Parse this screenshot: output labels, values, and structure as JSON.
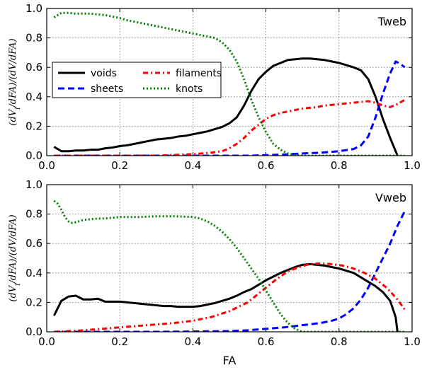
{
  "chart_data": [
    {
      "type": "line",
      "title": "Tweb",
      "xlabel": "",
      "ylabel": "(dV_i/dFA)/(dV/dFA)",
      "xlim": [
        0.0,
        1.0
      ],
      "ylim": [
        0.0,
        1.0
      ],
      "xticks": [
        "0.0",
        "0.2",
        "0.4",
        "0.6",
        "0.8",
        "1.0"
      ],
      "yticks": [
        "0.0",
        "0.2",
        "0.4",
        "0.6",
        "0.8",
        "1.0"
      ],
      "grid": true,
      "legend": "upper-left",
      "series": [
        {
          "name": "voids",
          "color": "#000000",
          "style": "solid",
          "x": [
            0.02,
            0.04,
            0.06,
            0.08,
            0.1,
            0.12,
            0.14,
            0.16,
            0.18,
            0.2,
            0.22,
            0.24,
            0.26,
            0.28,
            0.3,
            0.32,
            0.34,
            0.36,
            0.38,
            0.4,
            0.42,
            0.44,
            0.46,
            0.48,
            0.5,
            0.52,
            0.54,
            0.56,
            0.58,
            0.6,
            0.62,
            0.64,
            0.66,
            0.68,
            0.7,
            0.72,
            0.74,
            0.76,
            0.78,
            0.8,
            0.82,
            0.84,
            0.86,
            0.88,
            0.9,
            0.92,
            0.94,
            0.96
          ],
          "y": [
            0.06,
            0.03,
            0.03,
            0.035,
            0.035,
            0.04,
            0.04,
            0.05,
            0.055,
            0.065,
            0.07,
            0.08,
            0.09,
            0.1,
            0.11,
            0.115,
            0.12,
            0.13,
            0.135,
            0.145,
            0.155,
            0.165,
            0.18,
            0.195,
            0.22,
            0.26,
            0.34,
            0.44,
            0.52,
            0.57,
            0.61,
            0.63,
            0.65,
            0.655,
            0.66,
            0.66,
            0.655,
            0.65,
            0.64,
            0.63,
            0.615,
            0.6,
            0.58,
            0.52,
            0.4,
            0.25,
            0.12,
            0.0
          ]
        },
        {
          "name": "sheets",
          "color": "#0000ff",
          "style": "dashed",
          "x": [
            0.02,
            0.1,
            0.2,
            0.3,
            0.4,
            0.5,
            0.55,
            0.6,
            0.65,
            0.7,
            0.75,
            0.8,
            0.84,
            0.86,
            0.88,
            0.9,
            0.92,
            0.94,
            0.955,
            0.97,
            0.98
          ],
          "y": [
            0.0,
            0.0,
            0.0,
            0.0,
            0.0,
            0.0,
            0.0,
            0.003,
            0.008,
            0.015,
            0.02,
            0.03,
            0.045,
            0.07,
            0.13,
            0.26,
            0.42,
            0.56,
            0.64,
            0.62,
            0.6
          ]
        },
        {
          "name": "filaments",
          "color": "#ff0000",
          "style": "dashdot",
          "x": [
            0.02,
            0.1,
            0.2,
            0.3,
            0.4,
            0.45,
            0.48,
            0.5,
            0.52,
            0.54,
            0.56,
            0.58,
            0.6,
            0.62,
            0.64,
            0.66,
            0.68,
            0.7,
            0.72,
            0.74,
            0.76,
            0.78,
            0.8,
            0.82,
            0.84,
            0.86,
            0.88,
            0.9,
            0.92,
            0.94,
            0.96,
            0.98
          ],
          "y": [
            0.0,
            0.0,
            0.0,
            0.0,
            0.01,
            0.02,
            0.03,
            0.05,
            0.08,
            0.12,
            0.17,
            0.21,
            0.25,
            0.275,
            0.29,
            0.3,
            0.31,
            0.32,
            0.325,
            0.33,
            0.34,
            0.345,
            0.35,
            0.355,
            0.36,
            0.365,
            0.37,
            0.36,
            0.34,
            0.33,
            0.35,
            0.38
          ]
        },
        {
          "name": "knots",
          "color": "#008000",
          "style": "dotted",
          "x": [
            0.02,
            0.04,
            0.06,
            0.08,
            0.1,
            0.12,
            0.14,
            0.16,
            0.18,
            0.2,
            0.22,
            0.24,
            0.26,
            0.28,
            0.3,
            0.32,
            0.34,
            0.36,
            0.38,
            0.4,
            0.42,
            0.44,
            0.46,
            0.48,
            0.5,
            0.52,
            0.54,
            0.56,
            0.58,
            0.6,
            0.62,
            0.64,
            0.66,
            0.68,
            0.7,
            0.8,
            0.9,
            0.98
          ],
          "y": [
            0.94,
            0.97,
            0.97,
            0.965,
            0.965,
            0.965,
            0.96,
            0.955,
            0.945,
            0.935,
            0.92,
            0.91,
            0.9,
            0.89,
            0.88,
            0.87,
            0.86,
            0.85,
            0.84,
            0.83,
            0.82,
            0.81,
            0.8,
            0.77,
            0.72,
            0.64,
            0.52,
            0.38,
            0.26,
            0.16,
            0.08,
            0.04,
            0.015,
            0.005,
            0.0,
            0.0,
            0.0,
            0.0
          ]
        }
      ]
    },
    {
      "type": "line",
      "title": "Vweb",
      "xlabel": "FA",
      "ylabel": "(dV_i/dFA)/(dV/dFA)",
      "xlim": [
        0.0,
        1.0
      ],
      "ylim": [
        0.0,
        1.0
      ],
      "xticks": [
        "0.0",
        "0.2",
        "0.4",
        "0.6",
        "0.8",
        "1.0"
      ],
      "yticks": [
        "0.0",
        "0.2",
        "0.4",
        "0.6",
        "0.8",
        "1.0"
      ],
      "grid": true,
      "series": [
        {
          "name": "voids",
          "color": "#000000",
          "style": "solid",
          "x": [
            0.02,
            0.04,
            0.06,
            0.08,
            0.1,
            0.12,
            0.14,
            0.16,
            0.18,
            0.2,
            0.22,
            0.24,
            0.26,
            0.28,
            0.3,
            0.32,
            0.34,
            0.36,
            0.38,
            0.4,
            0.42,
            0.44,
            0.46,
            0.48,
            0.5,
            0.52,
            0.54,
            0.56,
            0.58,
            0.6,
            0.62,
            0.64,
            0.66,
            0.68,
            0.7,
            0.72,
            0.74,
            0.76,
            0.78,
            0.8,
            0.82,
            0.84,
            0.86,
            0.88,
            0.9,
            0.92,
            0.94,
            0.955,
            0.96
          ],
          "y": [
            0.11,
            0.21,
            0.24,
            0.245,
            0.22,
            0.22,
            0.225,
            0.205,
            0.205,
            0.205,
            0.2,
            0.195,
            0.19,
            0.185,
            0.18,
            0.175,
            0.175,
            0.17,
            0.17,
            0.17,
            0.175,
            0.185,
            0.195,
            0.21,
            0.225,
            0.245,
            0.27,
            0.29,
            0.32,
            0.35,
            0.375,
            0.4,
            0.42,
            0.44,
            0.455,
            0.46,
            0.455,
            0.45,
            0.44,
            0.43,
            0.415,
            0.4,
            0.37,
            0.34,
            0.31,
            0.27,
            0.21,
            0.1,
            0.0
          ]
        },
        {
          "name": "sheets",
          "color": "#0000ff",
          "style": "dashed",
          "x": [
            0.02,
            0.1,
            0.2,
            0.3,
            0.4,
            0.5,
            0.55,
            0.6,
            0.65,
            0.7,
            0.75,
            0.78,
            0.8,
            0.82,
            0.84,
            0.86,
            0.88,
            0.9,
            0.92,
            0.94,
            0.96,
            0.98
          ],
          "y": [
            0.0,
            0.0,
            0.0,
            0.0,
            0.002,
            0.005,
            0.01,
            0.02,
            0.03,
            0.045,
            0.06,
            0.075,
            0.09,
            0.12,
            0.16,
            0.22,
            0.3,
            0.4,
            0.5,
            0.6,
            0.72,
            0.82
          ]
        },
        {
          "name": "filaments",
          "color": "#ff0000",
          "style": "dashdot",
          "x": [
            0.02,
            0.06,
            0.1,
            0.15,
            0.2,
            0.25,
            0.3,
            0.35,
            0.4,
            0.45,
            0.5,
            0.55,
            0.6,
            0.63,
            0.66,
            0.69,
            0.72,
            0.75,
            0.78,
            0.81,
            0.84,
            0.87,
            0.9,
            0.93,
            0.96,
            0.98
          ],
          "y": [
            0.0,
            0.005,
            0.01,
            0.02,
            0.03,
            0.04,
            0.05,
            0.06,
            0.075,
            0.1,
            0.14,
            0.2,
            0.3,
            0.36,
            0.41,
            0.44,
            0.46,
            0.465,
            0.46,
            0.45,
            0.43,
            0.4,
            0.36,
            0.3,
            0.22,
            0.15
          ]
        },
        {
          "name": "knots",
          "color": "#008000",
          "style": "dotted",
          "x": [
            0.02,
            0.03,
            0.04,
            0.05,
            0.06,
            0.07,
            0.08,
            0.1,
            0.12,
            0.14,
            0.16,
            0.18,
            0.2,
            0.25,
            0.3,
            0.35,
            0.4,
            0.42,
            0.44,
            0.46,
            0.48,
            0.5,
            0.52,
            0.54,
            0.56,
            0.58,
            0.6,
            0.62,
            0.64,
            0.66,
            0.68,
            0.7,
            0.8,
            0.9,
            0.98
          ],
          "y": [
            0.89,
            0.87,
            0.83,
            0.78,
            0.75,
            0.74,
            0.745,
            0.76,
            0.765,
            0.77,
            0.77,
            0.775,
            0.78,
            0.78,
            0.785,
            0.785,
            0.78,
            0.77,
            0.75,
            0.72,
            0.68,
            0.63,
            0.57,
            0.5,
            0.43,
            0.36,
            0.28,
            0.2,
            0.12,
            0.06,
            0.02,
            0.0,
            0.0,
            0.0,
            0.0
          ]
        }
      ]
    }
  ]
}
